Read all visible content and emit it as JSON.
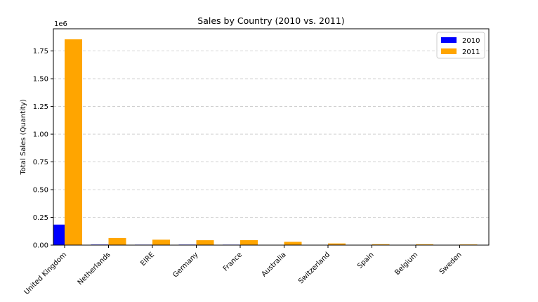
{
  "chart_data": {
    "type": "bar",
    "title": "Sales by Country (2010 vs. 2011)",
    "xlabel": "",
    "ylabel": "Total Sales (Quantity)",
    "offset_text": "1e6",
    "ylim": [
      0,
      1950000
    ],
    "yticks": [
      0,
      250000,
      500000,
      750000,
      1000000,
      1250000,
      1500000,
      1750000
    ],
    "ytick_labels": [
      "0.00",
      "0.25",
      "0.50",
      "0.75",
      "1.00",
      "1.25",
      "1.50",
      "1.75"
    ],
    "categories": [
      "United Kingdom",
      "Netherlands",
      "EIRE",
      "Germany",
      "France",
      "Australia",
      "Switzerland",
      "Spain",
      "Belgium",
      "Sweden"
    ],
    "series": [
      {
        "name": "2010",
        "color": "#0000ff",
        "values": [
          185000,
          5000,
          4000,
          4500,
          4000,
          2500,
          0,
          500,
          500,
          0
        ]
      },
      {
        "name": "2011",
        "color": "#ffa500",
        "values": [
          1855000,
          64000,
          49000,
          44000,
          45000,
          30000,
          15000,
          8000,
          7500,
          6000
        ]
      }
    ],
    "grid": "y-dashed",
    "legend_position": "upper right"
  }
}
